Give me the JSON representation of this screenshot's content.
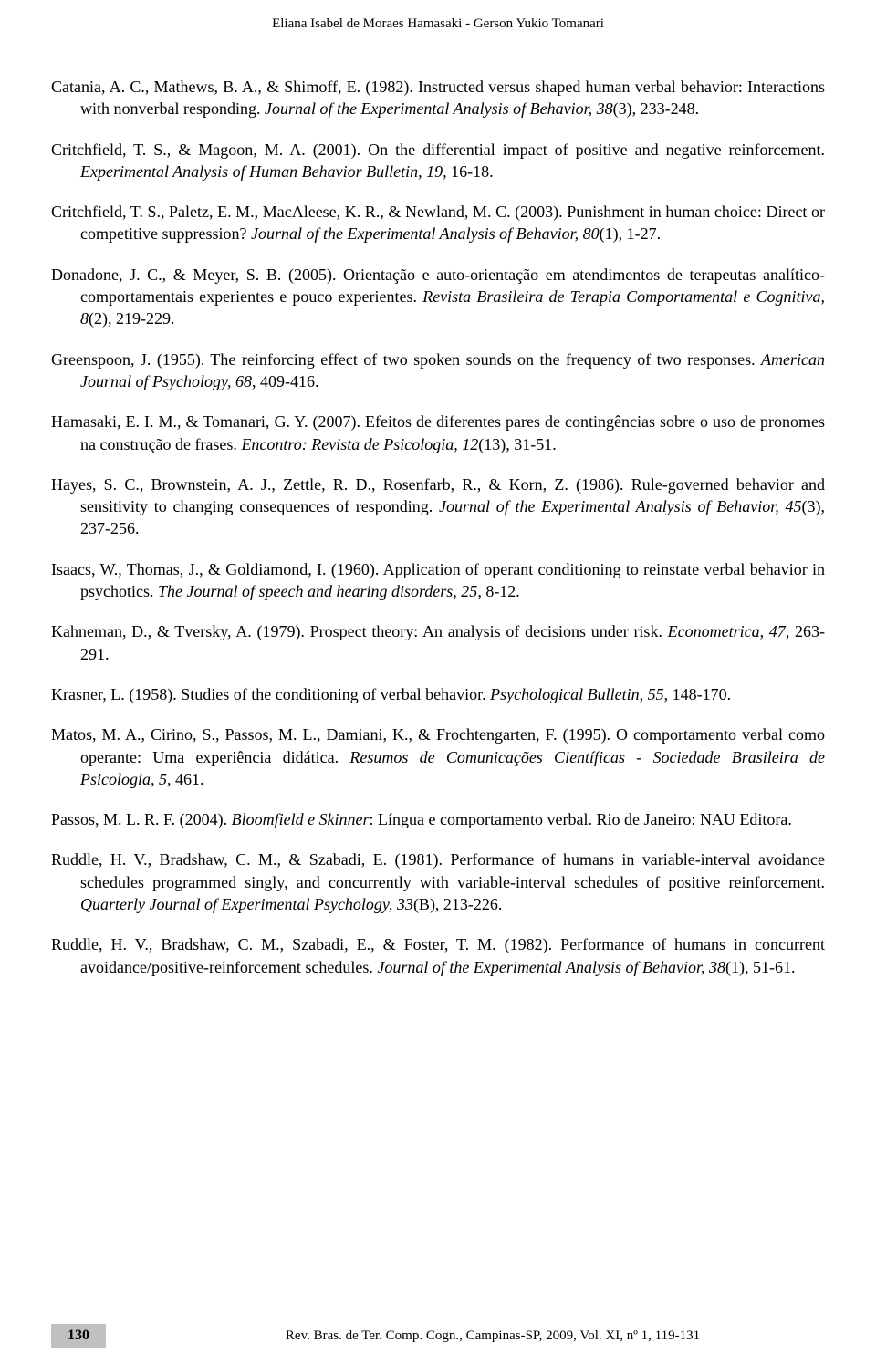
{
  "header": {
    "authors": "Eliana Isabel de Moraes Hamasaki - Gerson Yukio Tomanari"
  },
  "references": [
    {
      "plain1": "Catania, A. C., Mathews, B. A., & Shimoff, E. (1982). Instructed versus shaped human verbal behavior: Interactions with nonverbal responding. ",
      "italic1": "Journal of the Experimental Analysis of Behavior, 38",
      "plain2": "(3), 233-248."
    },
    {
      "plain1": "Critchfield, T. S., & Magoon, M. A. (2001). On the differential impact of positive and negative reinforcement. ",
      "italic1": "Experimental Analysis of Human Behavior Bulletin, 19,",
      "plain2": " 16-18."
    },
    {
      "plain1": "Critchfield, T. S., Paletz, E. M., MacAleese, K. R., & Newland, M. C. (2003). Punishment in human choice: Direct or competitive suppression? ",
      "italic1": "Journal of the Experimental Analysis of Behavior, 80",
      "plain2": "(1), 1-27."
    },
    {
      "plain1": "Donadone, J. C., & Meyer, S. B. (2005). Orientação e auto-orientação em atendimentos de terapeutas analítico-comportamentais experientes e pouco experientes. ",
      "italic1": "Revista Brasileira de Terapia Comportamental e Cognitiva, 8",
      "plain2": "(2), 219-229."
    },
    {
      "plain1": "Greenspoon, J. (1955). The reinforcing effect of two spoken sounds on the frequency of two responses. ",
      "italic1": "American Journal of Psychology, 68",
      "plain2": ", 409-416."
    },
    {
      "plain1": "Hamasaki, E. I. M., & Tomanari, G. Y. (2007). Efeitos de diferentes pares de contingências sobre o uso de pronomes na construção de frases. ",
      "italic1": "Encontro: Revista de Psicologia, 12",
      "plain2": "(13), 31-51."
    },
    {
      "plain1": "Hayes, S. C., Brownstein, A. J., Zettle, R. D., Rosenfarb, R., & Korn, Z. (1986). Rule-governed behavior and sensitivity to changing consequences of responding. ",
      "italic1": "Journal of the Experimental Analysis of Behavior, 45",
      "plain2": "(3), 237-256."
    },
    {
      "plain1": "Isaacs, W., Thomas, J., & Goldiamond, I. (1960). Application of operant conditioning to reinstate verbal behavior in psychotics. ",
      "italic1": "The Journal of speech and hearing disorders, 25",
      "plain2": ", 8-12."
    },
    {
      "plain1": "Kahneman, D., & Tversky, A. (1979). Prospect theory: An analysis of decisions under risk. ",
      "italic1": "Econometrica, 47",
      "plain2": ", 263-291."
    },
    {
      "plain1": "Krasner, L. (1958). Studies of the conditioning of verbal behavior. ",
      "italic1": "Psychological Bulletin, 55",
      "plain2": ", 148-170."
    },
    {
      "plain1": "Matos, M. A., Cirino, S., Passos, M. L., Damiani, K., & Frochtengarten, F. (1995). O comportamento verbal como operante: Uma experiência didática. ",
      "italic1": "Resumos de Comunicações Científicas - Sociedade Brasileira de Psicologia, 5",
      "plain2": ", 461."
    },
    {
      "plain1": "Passos, M. L. R. F. (2004). ",
      "italic1": "Bloomfield e Skinner",
      "plain2": ": Língua e comportamento verbal. Rio de Janeiro: NAU Editora."
    },
    {
      "plain1": "Ruddle, H. V., Bradshaw, C. M., & Szabadi, E. (1981). Performance of humans in variable-interval avoidance schedules programmed singly, and concurrently with variable-interval schedules of positive reinforcement. ",
      "italic1": "Quarterly Journal of Experimental Psychology, 33",
      "plain2": "(B), 213-226."
    },
    {
      "plain1": "Ruddle, H. V., Bradshaw, C. M., Szabadi, E., & Foster, T. M. (1982). Performance of humans in concurrent avoidance/positive-reinforcement schedules. ",
      "italic1": "Journal of the Experimental Analysis of Behavior, 38",
      "plain2": "(1), 51-61."
    }
  ],
  "footer": {
    "page_number": "130",
    "citation": "Rev. Bras. de Ter. Comp. Cogn., Campinas-SP, 2009, Vol. XI, nº 1, 119-131"
  }
}
